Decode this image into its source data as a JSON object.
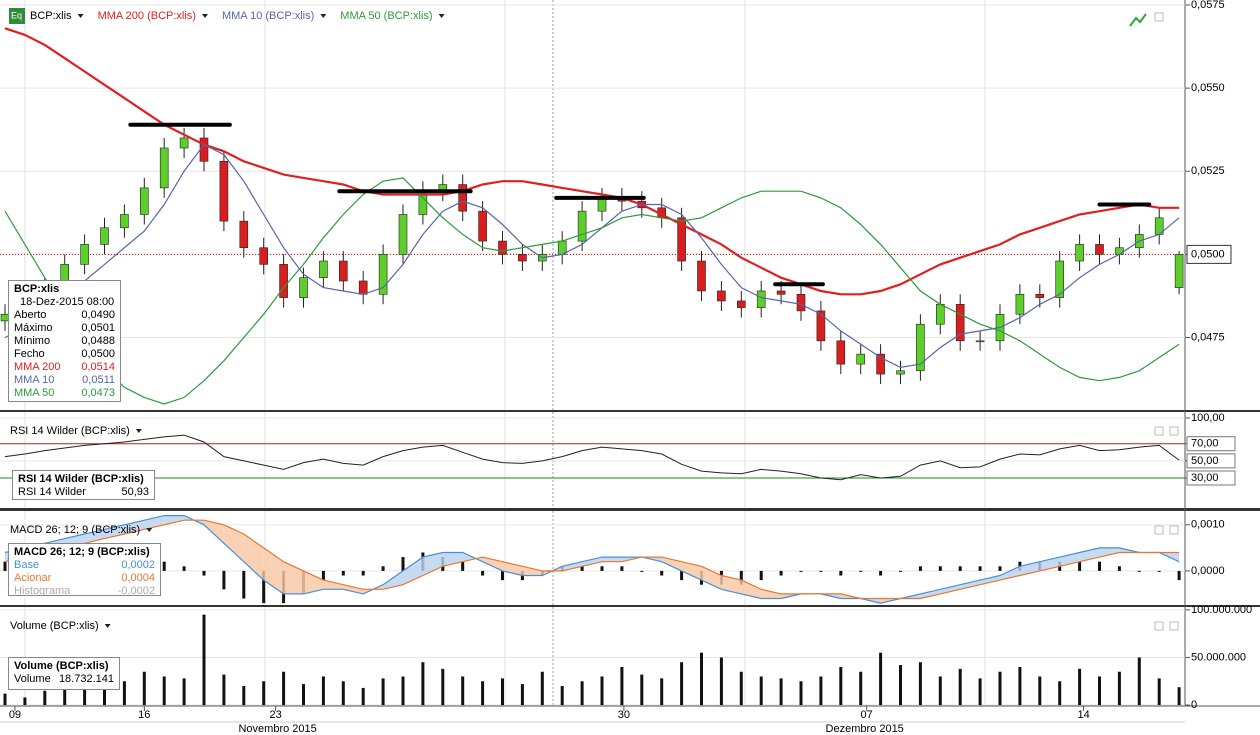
{
  "chart_data": [
    {
      "type": "candlestick",
      "symbol": "BCP:xlis",
      "icon": "Eq",
      "up_color": "#5ccf2a",
      "down_color": "#d81e1e",
      "open": [
        0.048,
        0.0482,
        0.0486,
        0.049,
        0.0497,
        0.0503,
        0.0508,
        0.0512,
        0.052,
        0.0532,
        0.0535,
        0.0528,
        0.051,
        0.0502,
        0.0497,
        0.0487,
        0.0493,
        0.0498,
        0.0492,
        0.0488,
        0.05,
        0.0512,
        0.0519,
        0.0521,
        0.0513,
        0.0504,
        0.05,
        0.0498,
        0.05,
        0.0504,
        0.0513,
        0.0517,
        0.0516,
        0.0514,
        0.0511,
        0.0498,
        0.0489,
        0.0486,
        0.0484,
        0.0489,
        0.0488,
        0.0483,
        0.0474,
        0.0467,
        0.047,
        0.0464,
        0.0465,
        0.0479,
        0.0485,
        0.0474,
        0.0474,
        0.0482,
        0.0488,
        0.0487,
        0.0498,
        0.0503,
        0.05,
        0.0502,
        0.0506,
        0.049
      ],
      "high": [
        0.0485,
        0.0489,
        0.0493,
        0.05,
        0.0506,
        0.0511,
        0.0515,
        0.0523,
        0.0535,
        0.0538,
        0.0538,
        0.0531,
        0.0513,
        0.0505,
        0.05,
        0.0496,
        0.0501,
        0.0501,
        0.0495,
        0.0503,
        0.0515,
        0.0522,
        0.0524,
        0.0524,
        0.0516,
        0.0507,
        0.0503,
        0.0503,
        0.0507,
        0.0516,
        0.052,
        0.052,
        0.0519,
        0.0517,
        0.0514,
        0.0501,
        0.0492,
        0.0489,
        0.0492,
        0.0492,
        0.0491,
        0.0486,
        0.0477,
        0.0473,
        0.0473,
        0.0468,
        0.0482,
        0.0488,
        0.0488,
        0.0477,
        0.0485,
        0.0491,
        0.0491,
        0.0501,
        0.0506,
        0.0506,
        0.0505,
        0.0509,
        0.0514,
        0.0501
      ],
      "low": [
        0.0477,
        0.0479,
        0.0483,
        0.0487,
        0.0494,
        0.05,
        0.0505,
        0.0509,
        0.0517,
        0.0529,
        0.0525,
        0.0507,
        0.0499,
        0.0494,
        0.0484,
        0.0484,
        0.049,
        0.0489,
        0.0485,
        0.0485,
        0.0497,
        0.0509,
        0.0516,
        0.051,
        0.0501,
        0.0497,
        0.0495,
        0.0495,
        0.0497,
        0.0501,
        0.051,
        0.0513,
        0.0511,
        0.0508,
        0.0495,
        0.0486,
        0.0483,
        0.0481,
        0.0481,
        0.0485,
        0.048,
        0.0471,
        0.0464,
        0.0464,
        0.0461,
        0.0461,
        0.0462,
        0.0476,
        0.0471,
        0.0471,
        0.0471,
        0.0479,
        0.0484,
        0.0484,
        0.0495,
        0.0497,
        0.0497,
        0.0499,
        0.0503,
        0.0488
      ],
      "close": [
        0.0482,
        0.0486,
        0.049,
        0.0497,
        0.0503,
        0.0508,
        0.0512,
        0.052,
        0.0532,
        0.0535,
        0.0528,
        0.051,
        0.0502,
        0.0497,
        0.0487,
        0.0493,
        0.0498,
        0.0492,
        0.0488,
        0.05,
        0.0512,
        0.0519,
        0.0521,
        0.0513,
        0.0504,
        0.05,
        0.0498,
        0.05,
        0.0504,
        0.0513,
        0.0517,
        0.0516,
        0.0514,
        0.0511,
        0.0498,
        0.0489,
        0.0486,
        0.0484,
        0.0489,
        0.0488,
        0.0483,
        0.0474,
        0.0467,
        0.047,
        0.0464,
        0.0465,
        0.0479,
        0.0485,
        0.0474,
        0.0474,
        0.0482,
        0.0488,
        0.0487,
        0.0498,
        0.0503,
        0.05,
        0.0502,
        0.0506,
        0.0511,
        0.05
      ],
      "series": [
        {
          "name": "MMA 200 (BCP:xlis)",
          "color": "#e02020",
          "width": 2.2,
          "values": [
            0.0568,
            0.0566,
            0.0563,
            0.0559,
            0.0555,
            0.0551,
            0.0547,
            0.0543,
            0.0539,
            0.0536,
            0.0533,
            0.0531,
            0.0528,
            0.0526,
            0.0524,
            0.0523,
            0.0522,
            0.0521,
            0.0519,
            0.0518,
            0.0518,
            0.0518,
            0.0518,
            0.0519,
            0.0521,
            0.0522,
            0.0522,
            0.0521,
            0.052,
            0.0519,
            0.0518,
            0.0517,
            0.0515,
            0.0512,
            0.0509,
            0.0506,
            0.0503,
            0.0499,
            0.0496,
            0.0493,
            0.0491,
            0.0489,
            0.0488,
            0.0488,
            0.0489,
            0.0491,
            0.0494,
            0.0497,
            0.0499,
            0.0501,
            0.0503,
            0.0506,
            0.0508,
            0.051,
            0.0512,
            0.0513,
            0.0514,
            0.0515,
            0.0514,
            0.0514
          ]
        },
        {
          "name": "MMA 10 (BCP:xlis)",
          "color": "#5566aa",
          "width": 1.2,
          "values": [
            0.0475,
            0.0478,
            0.0482,
            0.0487,
            0.0492,
            0.0497,
            0.0502,
            0.0507,
            0.0515,
            0.0525,
            0.0533,
            0.053,
            0.0522,
            0.0512,
            0.0502,
            0.0494,
            0.049,
            0.0489,
            0.0488,
            0.049,
            0.0497,
            0.0506,
            0.0513,
            0.0516,
            0.0514,
            0.0509,
            0.0503,
            0.0499,
            0.05,
            0.0503,
            0.0508,
            0.0513,
            0.0515,
            0.0515,
            0.0512,
            0.0505,
            0.0497,
            0.049,
            0.0487,
            0.0486,
            0.0485,
            0.0482,
            0.0477,
            0.0473,
            0.0469,
            0.0466,
            0.0467,
            0.0472,
            0.0476,
            0.0477,
            0.0478,
            0.0481,
            0.0485,
            0.0488,
            0.0493,
            0.0497,
            0.05,
            0.0504,
            0.0506,
            0.0511
          ]
        },
        {
          "name": "MMA 50 (BCP:xlis)",
          "color": "#2e9a3a",
          "width": 1.2,
          "values": [
            0.0513,
            0.0503,
            0.0493,
            0.0483,
            0.0474,
            0.0466,
            0.046,
            0.0457,
            0.0455,
            0.0457,
            0.0462,
            0.0468,
            0.0475,
            0.0482,
            0.049,
            0.0497,
            0.0505,
            0.0512,
            0.0518,
            0.0522,
            0.0523,
            0.0517,
            0.0511,
            0.0506,
            0.0502,
            0.0501,
            0.0502,
            0.0503,
            0.0504,
            0.0506,
            0.0508,
            0.0511,
            0.0512,
            0.0511,
            0.051,
            0.0511,
            0.0514,
            0.0517,
            0.0519,
            0.0519,
            0.0519,
            0.0517,
            0.0514,
            0.0509,
            0.0503,
            0.0496,
            0.0489,
            0.0485,
            0.0482,
            0.0479,
            0.0477,
            0.0474,
            0.047,
            0.0466,
            0.0463,
            0.0462,
            0.0463,
            0.0465,
            0.0469,
            0.0473
          ]
        }
      ],
      "ylim": [
        0.04532,
        0.05765
      ],
      "yticks": [
        {
          "value": 0.0575,
          "label": "0,0575"
        },
        {
          "value": 0.055,
          "label": "0,0550"
        },
        {
          "value": 0.0525,
          "label": "0,0525"
        },
        {
          "value": 0.05,
          "label": "0,0500"
        },
        {
          "value": 0.0475,
          "label": "0,0475"
        }
      ],
      "last_price": {
        "value": 0.05,
        "label": "0,0500"
      },
      "annotations": [
        {
          "x": [
            6.3,
            11.3
          ],
          "value": 0.0539
        },
        {
          "x": [
            16.8,
            23.4
          ],
          "value": 0.0519
        },
        {
          "x": [
            27.7,
            32.1
          ],
          "value": 0.0517
        },
        {
          "x": [
            38.7,
            41.1
          ],
          "value": 0.0491
        },
        {
          "x": [
            55,
            57.5
          ],
          "value": 0.0515
        }
      ],
      "xticks": [
        {
          "value": 0.5,
          "label": "09"
        },
        {
          "value": 7,
          "label": "16"
        },
        {
          "value": 13.6,
          "label": "23"
        },
        {
          "value": 31.1,
          "label": "30"
        },
        {
          "value": 43.3,
          "label": "07"
        },
        {
          "value": 54.2,
          "label": "14"
        }
      ],
      "months": [
        {
          "value": 13.7,
          "label": "Novembro 2015"
        },
        {
          "value": 43.2,
          "label": "Dezembro 2015"
        }
      ],
      "info": {
        "title": "BCP:xlis",
        "date": "18-Dez-2015 08:00",
        "rows": [
          {
            "label": "Aberto",
            "value": "0,0490",
            "color": "#000"
          },
          {
            "label": "Máximo",
            "value": "0,0501",
            "color": "#000"
          },
          {
            "label": "Mínimo",
            "value": "0,0488",
            "color": "#000"
          },
          {
            "label": "Fecho",
            "value": "0,0500",
            "color": "#000"
          },
          {
            "label": "MMA 200",
            "value": "0,0514",
            "color": "#e02020"
          },
          {
            "label": "MMA 10",
            "value": "0,0511",
            "color": "#5566aa"
          },
          {
            "label": "MMA 50",
            "value": "0,0473",
            "color": "#2e9a3a"
          }
        ]
      }
    },
    {
      "type": "line",
      "title": "RSI 14 Wilder (BCP:xlis)",
      "color": "#222",
      "values": [
        55,
        58,
        62,
        65,
        68,
        70,
        72,
        75,
        78,
        80,
        72,
        55,
        50,
        45,
        40,
        48,
        52,
        47,
        45,
        55,
        62,
        66,
        68,
        60,
        52,
        48,
        47,
        50,
        55,
        62,
        66,
        64,
        62,
        58,
        46,
        38,
        36,
        35,
        40,
        38,
        35,
        30,
        28,
        34,
        30,
        32,
        45,
        50,
        42,
        43,
        52,
        58,
        57,
        64,
        68,
        62,
        63,
        66,
        68,
        50.93
      ],
      "ylim": [
        -5,
        107
      ],
      "yticks": [
        {
          "value": 100,
          "label": "100,00"
        },
        {
          "value": 70,
          "label": "70,00"
        },
        {
          "value": 50,
          "label": "50,00"
        },
        {
          "value": 30,
          "label": "30,00"
        }
      ],
      "reference_lines": [
        {
          "value": 70,
          "color": "#c62020"
        },
        {
          "value": 30,
          "color": "#1e8a2a"
        }
      ],
      "info": {
        "title": "RSI 14 Wilder (BCP:xlis)",
        "rows": [
          {
            "label": "RSI 14 Wilder",
            "value": "50,93",
            "color": "#000"
          }
        ]
      }
    },
    {
      "type": "macd",
      "title": "MACD 26; 12; 9 (BCP:xlis)",
      "series": [
        {
          "name": "Base",
          "color": "#4a8fd6",
          "values": [
            0.0004,
            0.0005,
            0.0006,
            0.0007,
            0.0008,
            0.0009,
            0.001,
            0.0011,
            0.0012,
            0.0012,
            0.001,
            0.0006,
            0.0002,
            -0.0002,
            -0.0005,
            -0.0005,
            -0.0004,
            -0.0004,
            -0.0005,
            -0.0003,
            0.0,
            0.0003,
            0.0004,
            0.0004,
            0.0002,
            0.0,
            -0.0001,
            -0.0001,
            0.0001,
            0.0002,
            0.0003,
            0.0003,
            0.0003,
            0.0002,
            0.0,
            -0.0002,
            -0.0004,
            -0.0005,
            -0.0006,
            -0.0006,
            -0.0005,
            -0.0005,
            -0.0006,
            -0.0006,
            -0.0007,
            -0.0006,
            -0.0005,
            -0.0004,
            -0.0003,
            -0.0002,
            -0.0001,
            0.0001,
            0.0002,
            0.0003,
            0.0004,
            0.0005,
            0.0005,
            0.0004,
            0.0004,
            0.0002
          ]
        },
        {
          "name": "Acionar",
          "color": "#e8782c",
          "values": [
            0.0002,
            0.0003,
            0.0004,
            0.0005,
            0.0006,
            0.0007,
            0.0008,
            0.0009,
            0.001,
            0.0011,
            0.0011,
            0.001,
            0.0008,
            0.0005,
            0.0002,
            0.0,
            -0.0002,
            -0.0003,
            -0.0004,
            -0.0004,
            -0.0003,
            -0.0001,
            0.0001,
            0.0002,
            0.0003,
            0.0002,
            0.0001,
            0.0,
            0.0,
            0.0001,
            0.0002,
            0.0002,
            0.0003,
            0.0003,
            0.0002,
            0.0001,
            -0.0001,
            -0.0002,
            -0.0004,
            -0.0005,
            -0.0005,
            -0.0005,
            -0.0005,
            -0.0006,
            -0.0006,
            -0.0006,
            -0.0006,
            -0.0005,
            -0.0004,
            -0.0003,
            -0.0002,
            -0.0001,
            0.0,
            0.0001,
            0.0002,
            0.0003,
            0.0004,
            0.0004,
            0.0004,
            0.0004
          ]
        },
        {
          "name": "Histograma",
          "color": "#111",
          "values": [
            0.0002,
            0.0002,
            0.0002,
            0.0002,
            0.0002,
            0.0002,
            0.0002,
            0.0002,
            0.0002,
            0.0001,
            -0.0001,
            -0.0004,
            -0.0006,
            -0.0007,
            -0.0007,
            -0.0005,
            -0.0002,
            -0.0001,
            -0.0001,
            0.0001,
            0.0003,
            0.0004,
            0.0003,
            0.0002,
            -0.0001,
            -0.0002,
            -0.0002,
            -0.0001,
            0.0001,
            0.0001,
            0.0001,
            0.0001,
            0,
            -0.0001,
            -0.0002,
            -0.0003,
            -0.0003,
            -0.0003,
            -0.0002,
            -0.0001,
            0,
            0,
            -0.0001,
            0,
            -0.0001,
            0,
            0.0001,
            0.0001,
            0.0001,
            0.0001,
            0.0001,
            0.0002,
            0.0002,
            0.0002,
            0.0002,
            0.0002,
            0.0001,
            0,
            0,
            -0.0002
          ]
        }
      ],
      "fill_colors": [
        "#bcd5ef",
        "#f8caa8"
      ],
      "ylim": [
        -0.00074,
        0.0013
      ],
      "yticks": [
        {
          "value": 0.001,
          "label": "0,0010"
        },
        {
          "value": 0,
          "label": "0,0000"
        }
      ],
      "info": {
        "title": "MACD 26; 12; 9 (BCP:xlis)",
        "rows": [
          {
            "label": "Base",
            "value": "0,0002",
            "color": "#4a8fd6"
          },
          {
            "label": "Acionar",
            "value": "0,0004",
            "color": "#e8782c"
          },
          {
            "label": "Histograma",
            "value": "-0,0002",
            "color": "#aaa"
          }
        ]
      }
    },
    {
      "type": "bar",
      "title": "Volume (BCP:xlis)",
      "color": "#111",
      "values": [
        12000000,
        8000000,
        15000000,
        40000000,
        18000000,
        30000000,
        25000000,
        35000000,
        30000000,
        28000000,
        95000000,
        32000000,
        20000000,
        25000000,
        35000000,
        22000000,
        30000000,
        25000000,
        18000000,
        28000000,
        30000000,
        45000000,
        38000000,
        30000000,
        25000000,
        28000000,
        22000000,
        35000000,
        20000000,
        25000000,
        30000000,
        40000000,
        32000000,
        28000000,
        45000000,
        55000000,
        50000000,
        35000000,
        30000000,
        28000000,
        25000000,
        30000000,
        40000000,
        35000000,
        55000000,
        42000000,
        45000000,
        30000000,
        38000000,
        28000000,
        35000000,
        40000000,
        30000000,
        25000000,
        38000000,
        30000000,
        35000000,
        50000000,
        28000000,
        18732141
      ],
      "ylim": [
        -1000000,
        103000000
      ],
      "yticks": [
        {
          "value": 100000000,
          "label": "100.000.000"
        },
        {
          "value": 50000000,
          "label": "50.000.000"
        },
        0
      ],
      "info": {
        "title": "Volume (BCP:xlis)",
        "rows": [
          {
            "label": "Volume",
            "value": "18.732.141",
            "color": "#000"
          }
        ]
      }
    }
  ]
}
